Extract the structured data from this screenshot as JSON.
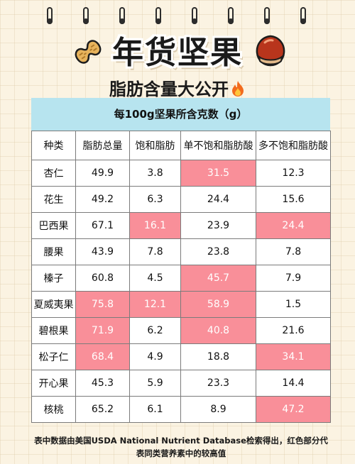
{
  "header": {
    "title": "年货坚果",
    "subtitle": "脂肪含量大公开"
  },
  "table": {
    "unit_label": "每100g坚果所含克数（g）",
    "columns": [
      "种类",
      "脂肪总量",
      "饱和脂肪",
      "单不饱和脂肪酸",
      "多不饱和脂肪酸"
    ],
    "rows": [
      {
        "name": "杏仁",
        "values": [
          "49.9",
          "3.8",
          "31.5",
          "12.3"
        ],
        "highlight": [
          false,
          false,
          true,
          false
        ]
      },
      {
        "name": "花生",
        "values": [
          "49.2",
          "6.3",
          "24.4",
          "15.6"
        ],
        "highlight": [
          false,
          false,
          false,
          false
        ]
      },
      {
        "name": "巴西果",
        "values": [
          "67.1",
          "16.1",
          "23.9",
          "24.4"
        ],
        "highlight": [
          false,
          true,
          false,
          true
        ]
      },
      {
        "name": "腰果",
        "values": [
          "43.9",
          "7.8",
          "23.8",
          "7.8"
        ],
        "highlight": [
          false,
          false,
          false,
          false
        ]
      },
      {
        "name": "榛子",
        "values": [
          "60.8",
          "4.5",
          "45.7",
          "7.9"
        ],
        "highlight": [
          false,
          false,
          true,
          false
        ]
      },
      {
        "name": "夏威夷果",
        "values": [
          "75.8",
          "12.1",
          "58.9",
          "1.5"
        ],
        "highlight": [
          true,
          true,
          true,
          false
        ]
      },
      {
        "name": "碧根果",
        "values": [
          "71.9",
          "6.2",
          "40.8",
          "21.6"
        ],
        "highlight": [
          true,
          false,
          true,
          false
        ]
      },
      {
        "name": "松子仁",
        "values": [
          "68.4",
          "4.9",
          "18.8",
          "34.1"
        ],
        "highlight": [
          true,
          false,
          false,
          true
        ]
      },
      {
        "name": "开心果",
        "values": [
          "45.3",
          "5.9",
          "23.3",
          "14.4"
        ],
        "highlight": [
          false,
          false,
          false,
          false
        ]
      },
      {
        "name": "核桃",
        "values": [
          "65.2",
          "6.1",
          "8.9",
          "47.2"
        ],
        "highlight": [
          false,
          false,
          false,
          true
        ]
      }
    ]
  },
  "footer": {
    "line1": "表中数据由美国USDA National Nutrient Database检索得出，红色部分代",
    "line2": "表同类营养素中的较高值"
  },
  "icons": {
    "left": "peanut-icon",
    "right": "chestnut-icon",
    "subtitle": "fire-icon"
  },
  "colors": {
    "highlight": "#f98f99",
    "banner": "#b7e4ef",
    "background": "#fbf3e2"
  }
}
